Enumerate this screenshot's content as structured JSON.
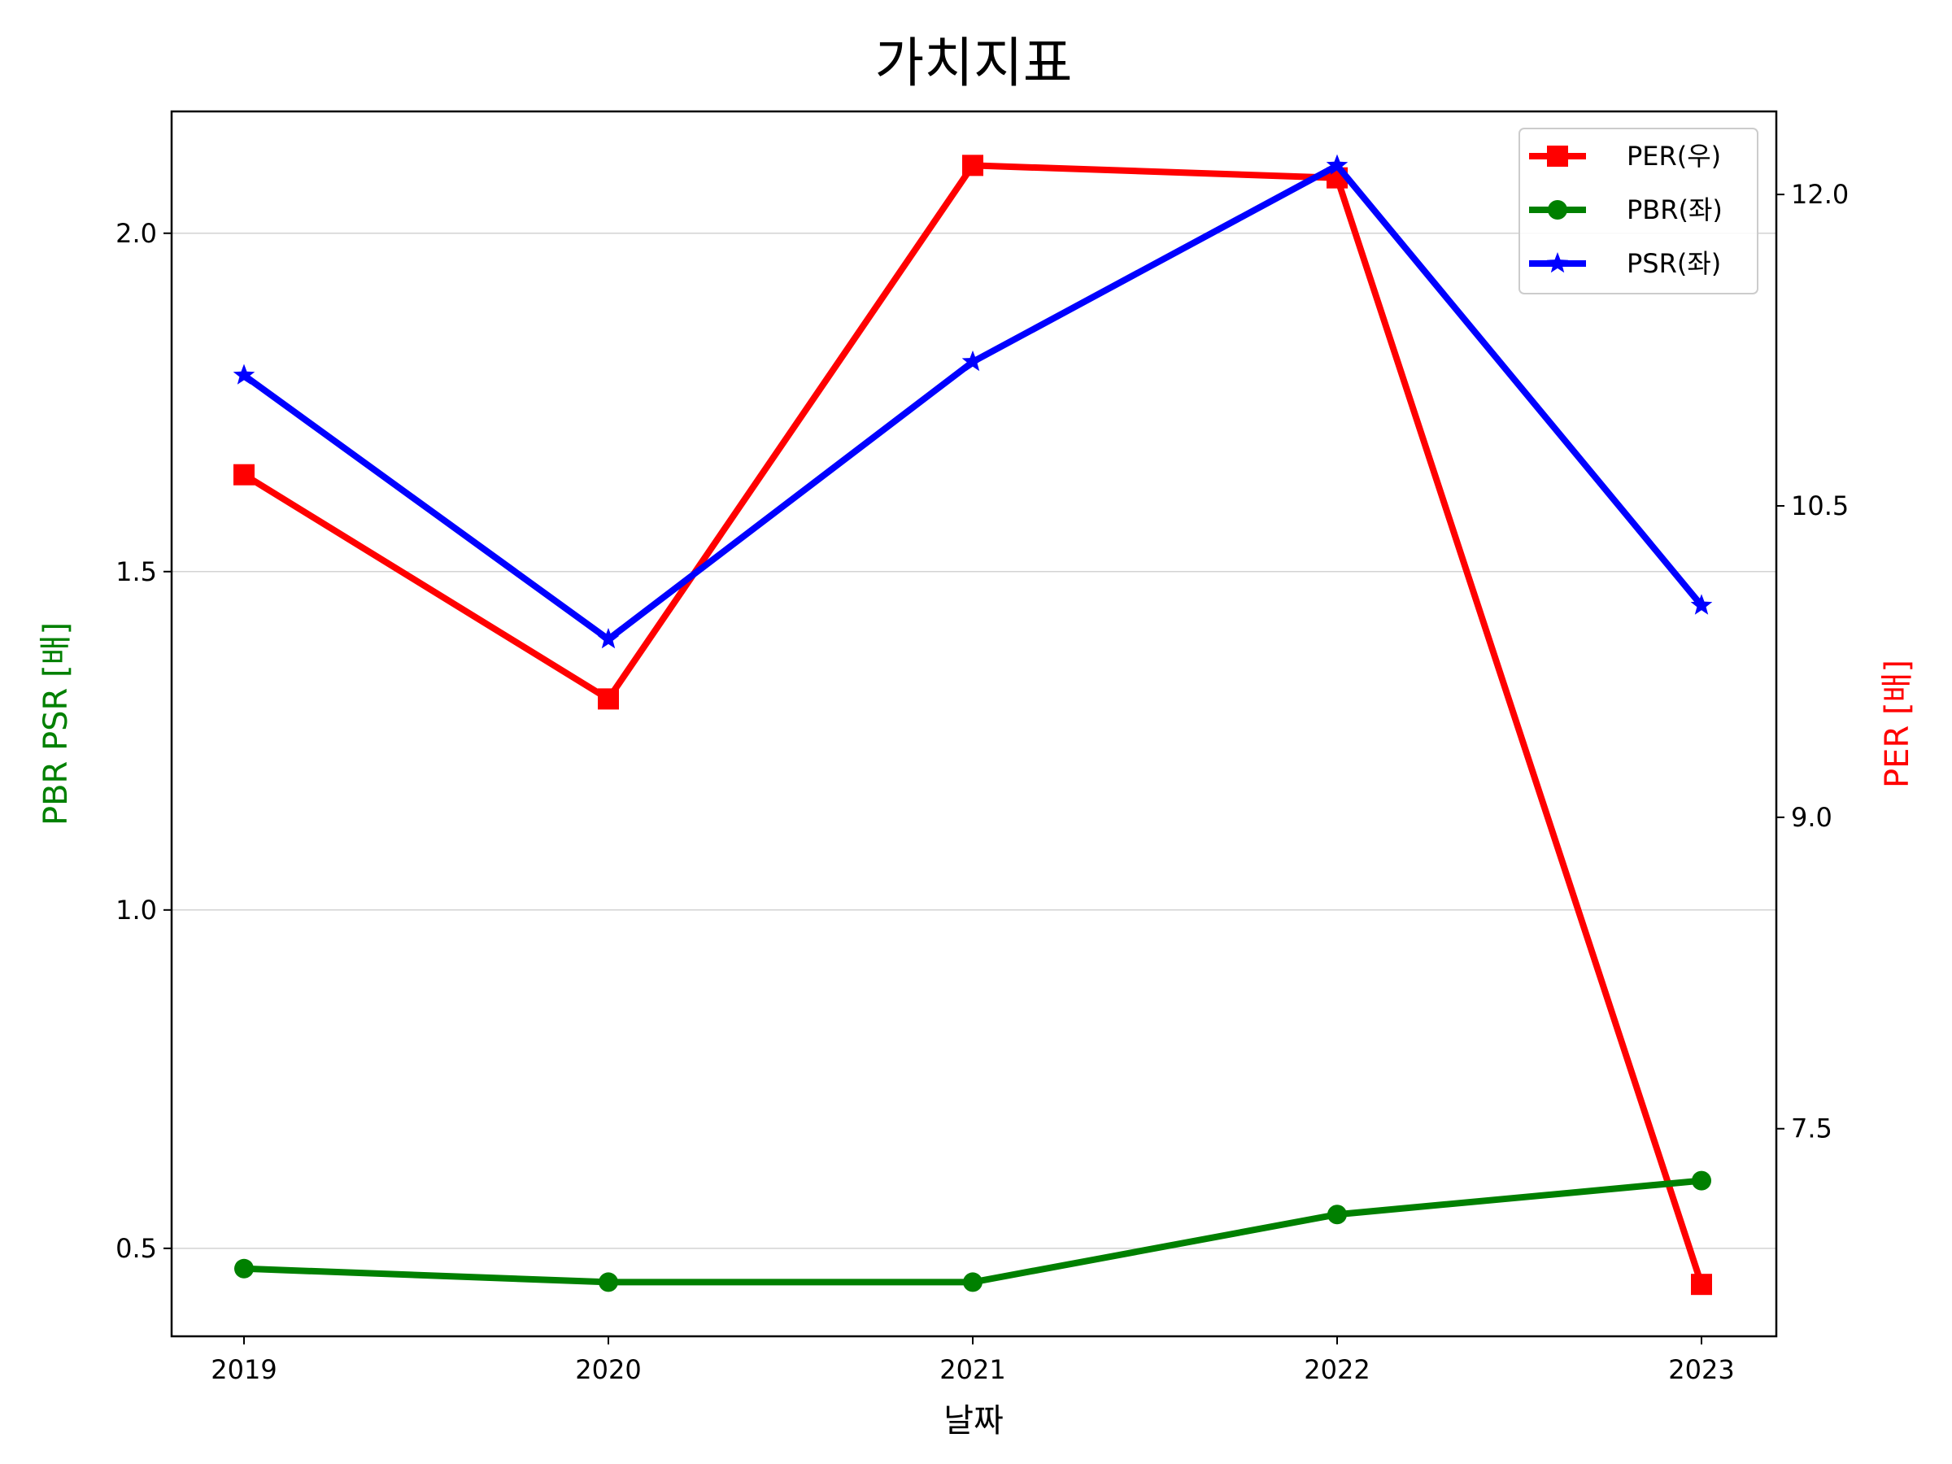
{
  "chart_data": {
    "type": "line",
    "title": "가치지표",
    "xlabel": "날짜",
    "ylabel_left": "PBR PSR [배]",
    "ylabel_right": "PER [배]",
    "categories": [
      "2019",
      "2020",
      "2021",
      "2022",
      "2023"
    ],
    "left_axis": {
      "ylim": [
        0.37,
        2.18
      ],
      "ticks": [
        0.5,
        1.0,
        1.5,
        2.0
      ],
      "tick_labels": [
        "0.5",
        "1.0",
        "1.5",
        "2.0"
      ]
    },
    "right_axis": {
      "ylim": [
        6.5,
        12.4
      ],
      "ticks": [
        7.5,
        9.0,
        10.5,
        12.0
      ],
      "tick_labels": [
        "7.5",
        "9.0",
        "10.5",
        "12.0"
      ]
    },
    "grid": "horizontal (left axis)",
    "legend_position": "top-right",
    "series": [
      {
        "name": "PER(우)",
        "axis": "right",
        "color": "#ff0000",
        "marker": "square",
        "values": [
          10.65,
          9.57,
          12.14,
          12.08,
          6.75
        ]
      },
      {
        "name": "PBR(좌)",
        "axis": "left",
        "color": "#008000",
        "marker": "circle",
        "values": [
          0.47,
          0.45,
          0.45,
          0.55,
          0.6
        ]
      },
      {
        "name": "PSR(좌)",
        "axis": "left",
        "color": "#0000ff",
        "marker": "star",
        "values": [
          1.79,
          1.4,
          1.81,
          2.1,
          1.45
        ]
      }
    ]
  }
}
